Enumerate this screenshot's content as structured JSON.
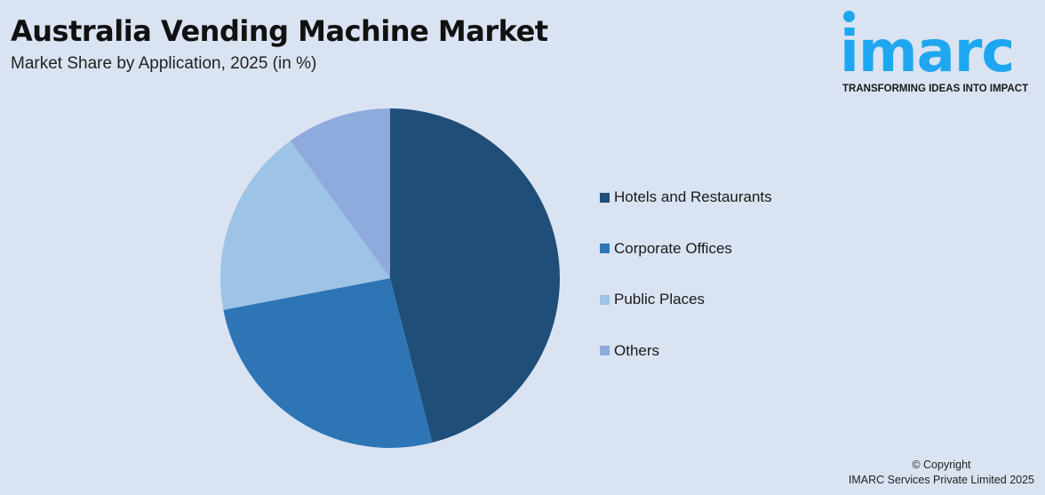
{
  "header": {
    "title": "Australia Vending Machine Market",
    "subtitle": "Market Share by Application, 2025 (in %)"
  },
  "logo": {
    "word": "imarc",
    "tagline": "TRANSFORMING IDEAS INTO IMPACT",
    "color": "#1ea7f0"
  },
  "legend": [
    {
      "label": "Hotels and Restaurants",
      "color": "#1f4e79"
    },
    {
      "label": "Corporate Offices",
      "color": "#2e75b6"
    },
    {
      "label": "Public Places",
      "color": "#9dc3e6"
    },
    {
      "label": "Others",
      "color": "#8faadc"
    }
  ],
  "footer": {
    "copyright_line1": "© Copyright",
    "copyright_line2": "IMARC Services Private Limited 2025"
  },
  "chart_data": {
    "type": "pie",
    "title": "Australia Vending Machine Market",
    "subtitle": "Market Share by Application, 2025 (in %)",
    "categories": [
      "Hotels and Restaurants",
      "Corporate Offices",
      "Public Places",
      "Others"
    ],
    "values": [
      46,
      26,
      18,
      10
    ],
    "colors": [
      "#1f4e79",
      "#2e75b6",
      "#9dc3e6",
      "#8faadc"
    ],
    "start_angle": "12 o'clock, clockwise",
    "legend_position": "right",
    "data_labels": false
  }
}
